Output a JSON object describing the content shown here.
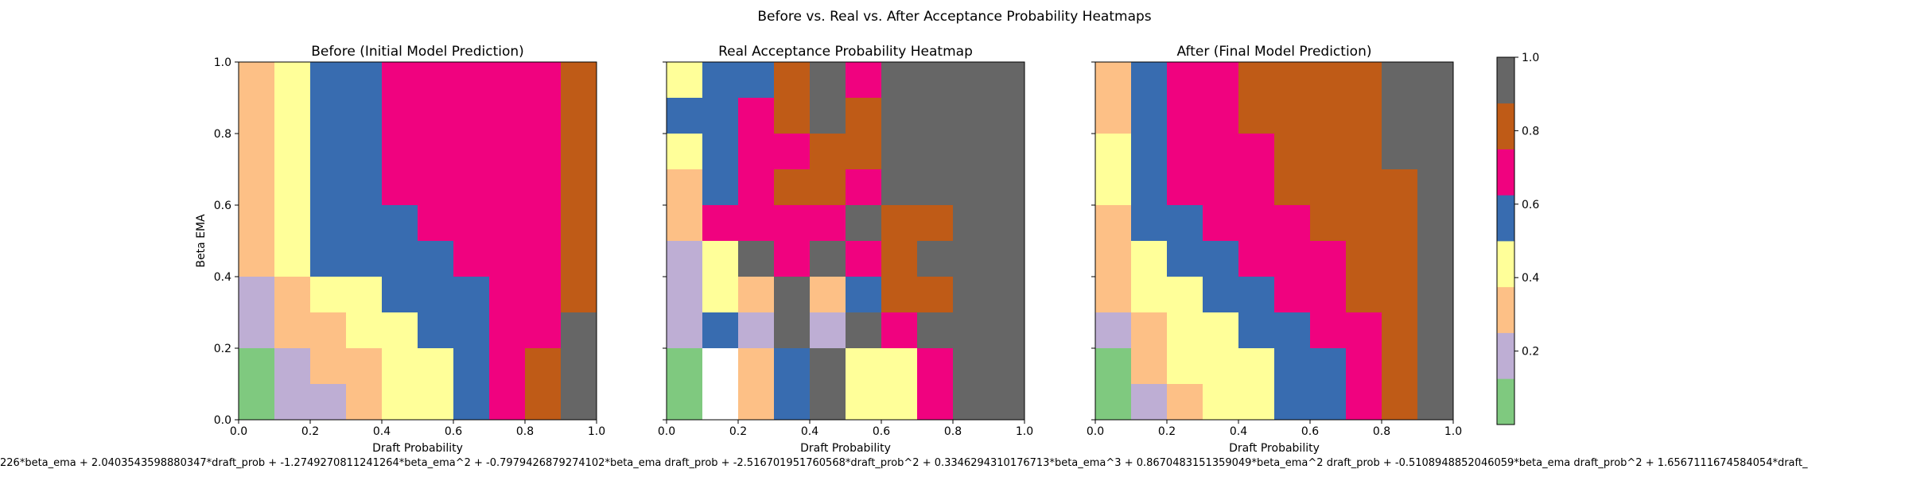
{
  "figure": {
    "suptitle": "Before vs. Real vs. After Acceptance Probability Heatmaps",
    "equation": "226*beta_ema + 2.0403543598880347*draft_prob + -1.2749270811241264*beta_ema^2 + -0.7979426879274102*beta_ema draft_prob + -2.516701951760568*draft_prob^2 + 0.3346294310176713*beta_ema^3 + 0.8670483151359049*beta_ema^2 draft_prob + -0.5108948852046059*beta_ema draft_prob^2 + 1.6567111674584054*draft_"
  },
  "colors": {
    "bin_colors": [
      "#7fc97f",
      "#beaed4",
      "#fdc086",
      "#ffff99",
      "#386cb0",
      "#f0027f",
      "#bf5b17",
      "#666666"
    ],
    "nan_color": "#ffffff"
  },
  "chart_data": [
    {
      "type": "heatmap",
      "title": "Before (Initial Model Prediction)",
      "xlabel": "Draft Probability",
      "ylabel": "Beta EMA",
      "xlim": [
        0,
        1
      ],
      "ylim": [
        0,
        1
      ],
      "xticks": [
        "0.0",
        "0.2",
        "0.4",
        "0.6",
        "0.8",
        "1.0"
      ],
      "yticks": [
        "0.0",
        "0.2",
        "0.4",
        "0.6",
        "0.8",
        "1.0"
      ],
      "colormap": "Accent",
      "vmin": 0,
      "vmax": 1,
      "rows_top_to_bottom": [
        [
          0.3,
          0.4,
          0.6,
          0.6,
          0.7,
          0.7,
          0.7,
          0.7,
          0.7,
          0.8
        ],
        [
          0.3,
          0.4,
          0.6,
          0.6,
          0.7,
          0.7,
          0.7,
          0.7,
          0.7,
          0.8
        ],
        [
          0.3,
          0.4,
          0.6,
          0.6,
          0.7,
          0.7,
          0.7,
          0.7,
          0.7,
          0.8
        ],
        [
          0.3,
          0.4,
          0.6,
          0.6,
          0.7,
          0.7,
          0.7,
          0.7,
          0.7,
          0.8
        ],
        [
          0.3,
          0.4,
          0.6,
          0.6,
          0.6,
          0.7,
          0.7,
          0.7,
          0.7,
          0.8
        ],
        [
          0.3,
          0.4,
          0.6,
          0.6,
          0.6,
          0.6,
          0.7,
          0.7,
          0.7,
          0.8
        ],
        [
          0.2,
          0.3,
          0.4,
          0.4,
          0.6,
          0.6,
          0.6,
          0.7,
          0.7,
          0.8
        ],
        [
          0.2,
          0.3,
          0.3,
          0.4,
          0.4,
          0.6,
          0.6,
          0.7,
          0.7,
          1.0
        ],
        [
          0.1,
          0.2,
          0.3,
          0.3,
          0.4,
          0.4,
          0.6,
          0.7,
          0.8,
          1.0
        ],
        [
          0.1,
          0.2,
          0.2,
          0.3,
          0.4,
          0.4,
          0.6,
          0.7,
          0.8,
          1.0
        ]
      ]
    },
    {
      "type": "heatmap",
      "title": "Real Acceptance Probability Heatmap",
      "xlabel": "Draft Probability",
      "ylabel": "",
      "xlim": [
        0,
        1
      ],
      "ylim": [
        0,
        1
      ],
      "xticks": [
        "0.0",
        "0.2",
        "0.4",
        "0.6",
        "0.8",
        "1.0"
      ],
      "yticks": [],
      "colormap": "Accent",
      "vmin": 0,
      "vmax": 1,
      "rows_top_to_bottom": [
        [
          0.4,
          0.6,
          0.6,
          0.8,
          1.0,
          0.7,
          1.0,
          1.0,
          1.0,
          1.0
        ],
        [
          0.6,
          0.6,
          0.7,
          0.8,
          1.0,
          0.8,
          1.0,
          1.0,
          1.0,
          1.0
        ],
        [
          0.4,
          0.6,
          0.7,
          0.7,
          0.8,
          0.8,
          1.0,
          1.0,
          1.0,
          1.0
        ],
        [
          0.3,
          0.6,
          0.7,
          0.8,
          0.8,
          0.7,
          1.0,
          1.0,
          1.0,
          1.0
        ],
        [
          0.3,
          0.7,
          0.7,
          0.7,
          0.7,
          1.0,
          0.8,
          0.8,
          1.0,
          1.0
        ],
        [
          0.2,
          0.4,
          1.0,
          0.7,
          1.0,
          0.7,
          0.8,
          1.0,
          1.0,
          1.0
        ],
        [
          0.2,
          0.4,
          0.3,
          1.0,
          0.3,
          0.6,
          0.8,
          0.8,
          1.0,
          1.0
        ],
        [
          0.2,
          0.6,
          0.2,
          1.0,
          0.2,
          1.0,
          0.7,
          1.0,
          1.0,
          1.0
        ],
        [
          0.1,
          null,
          0.3,
          0.6,
          1.0,
          0.4,
          0.4,
          0.7,
          1.0,
          1.0
        ],
        [
          0.1,
          null,
          0.3,
          0.6,
          1.0,
          0.4,
          0.4,
          0.7,
          1.0,
          1.0
        ]
      ]
    },
    {
      "type": "heatmap",
      "title": "After (Final Model Prediction)",
      "xlabel": "Draft Probability",
      "ylabel": "",
      "xlim": [
        0,
        1
      ],
      "ylim": [
        0,
        1
      ],
      "xticks": [
        "0.0",
        "0.2",
        "0.4",
        "0.6",
        "0.8",
        "1.0"
      ],
      "yticks": [],
      "colormap": "Accent",
      "vmin": 0,
      "vmax": 1,
      "rows_top_to_bottom": [
        [
          0.3,
          0.6,
          0.7,
          0.7,
          0.8,
          0.8,
          0.8,
          0.8,
          1.0,
          1.0
        ],
        [
          0.3,
          0.6,
          0.7,
          0.7,
          0.8,
          0.8,
          0.8,
          0.8,
          1.0,
          1.0
        ],
        [
          0.4,
          0.6,
          0.7,
          0.7,
          0.7,
          0.8,
          0.8,
          0.8,
          1.0,
          1.0
        ],
        [
          0.4,
          0.6,
          0.7,
          0.7,
          0.7,
          0.8,
          0.8,
          0.8,
          0.8,
          1.0
        ],
        [
          0.3,
          0.6,
          0.6,
          0.7,
          0.7,
          0.7,
          0.8,
          0.8,
          0.8,
          1.0
        ],
        [
          0.3,
          0.4,
          0.6,
          0.6,
          0.7,
          0.7,
          0.7,
          0.8,
          0.8,
          1.0
        ],
        [
          0.3,
          0.4,
          0.4,
          0.6,
          0.6,
          0.7,
          0.7,
          0.8,
          0.8,
          1.0
        ],
        [
          0.2,
          0.3,
          0.4,
          0.4,
          0.6,
          0.6,
          0.7,
          0.7,
          0.8,
          1.0
        ],
        [
          0.1,
          0.3,
          0.4,
          0.4,
          0.4,
          0.6,
          0.6,
          0.7,
          0.8,
          1.0
        ],
        [
          0.1,
          0.2,
          0.3,
          0.4,
          0.4,
          0.6,
          0.6,
          0.7,
          0.8,
          1.0
        ]
      ]
    },
    {
      "type": "colorbar",
      "range": [
        0,
        1
      ],
      "ticks": [
        "0.2",
        "0.4",
        "0.6",
        "0.8",
        "1.0"
      ],
      "tick_values": [
        0.2,
        0.4,
        0.6,
        0.8,
        1.0
      ]
    }
  ]
}
